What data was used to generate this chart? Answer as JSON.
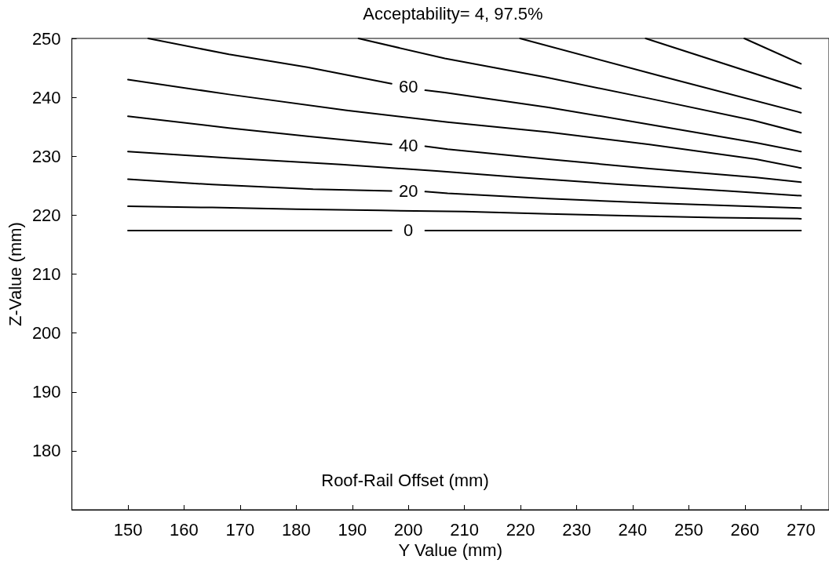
{
  "chart_data": {
    "type": "line",
    "title": "Acceptability= 4, 97.5%",
    "xlabel": "Y Value (mm)",
    "ylabel": "Z-Value (mm)",
    "annotations": [
      "Roof-Rail Offset (mm)"
    ],
    "xlim": [
      140,
      275
    ],
    "xticks": [
      150,
      160,
      170,
      180,
      190,
      200,
      210,
      220,
      230,
      240,
      250,
      260,
      270
    ],
    "ylim": [
      170,
      250
    ],
    "yticks": [
      180,
      190,
      200,
      210,
      220,
      230,
      240,
      250
    ],
    "grid": false,
    "legend": false,
    "marker": "none",
    "line_style": "solid",
    "series": [
      {
        "name": "0",
        "color": "#000000",
        "x": [
          150,
          197,
          200,
          203,
          270
        ],
        "values": [
          217.4,
          217.4,
          null,
          217.4,
          217.4
        ]
      },
      {
        "color": "#000000",
        "x": [
          150,
          165,
          180,
          195,
          210,
          225,
          240,
          255,
          270
        ],
        "values": [
          221.5,
          221.3,
          221.0,
          220.8,
          220.6,
          220.2,
          219.9,
          219.6,
          219.4
        ]
      },
      {
        "name": "20",
        "color": "#000000",
        "x": [
          150,
          165,
          183,
          197,
          200,
          203,
          207,
          225,
          245,
          270
        ],
        "values": [
          226.1,
          225.2,
          224.4,
          224.1,
          null,
          224.0,
          223.7,
          222.8,
          222.0,
          221.2
        ]
      },
      {
        "color": "#000000",
        "x": [
          150,
          168,
          188,
          205,
          220,
          238,
          257,
          270
        ],
        "values": [
          230.8,
          229.7,
          228.6,
          227.5,
          226.4,
          225.2,
          224.1,
          223.3
        ]
      },
      {
        "name": "40",
        "color": "#000000",
        "x": [
          150,
          168,
          182,
          197,
          200,
          203,
          207,
          225,
          243,
          262,
          270
        ],
        "values": [
          236.8,
          234.8,
          233.4,
          232.0,
          null,
          231.7,
          231.2,
          229.5,
          227.9,
          226.4,
          225.6
        ]
      },
      {
        "color": "#000000",
        "x": [
          150,
          168,
          189,
          207,
          225,
          243,
          262,
          270
        ],
        "values": [
          243.0,
          240.5,
          237.8,
          235.8,
          234.1,
          232.0,
          229.5,
          228.0
        ]
      },
      {
        "name": "60",
        "color": "#000000",
        "x": [
          153.6,
          168,
          182,
          197,
          200,
          203,
          206.5,
          225,
          243,
          262,
          270
        ],
        "values": [
          250,
          247.3,
          245.1,
          242.3,
          null,
          241.2,
          240.8,
          238.3,
          235.4,
          232.3,
          230.8
        ]
      },
      {
        "color": "#000000",
        "x": [
          191.1,
          206.5,
          224.5,
          243,
          261.5,
          270
        ],
        "values": [
          250,
          246.6,
          243.4,
          239.8,
          236.1,
          234.0
        ]
      },
      {
        "color": "#000000",
        "x": [
          219.9,
          245,
          270
        ],
        "values": [
          250,
          243.6,
          237.4
        ]
      },
      {
        "color": "#000000",
        "x": [
          242.3,
          270
        ],
        "values": [
          250,
          241.5
        ]
      },
      {
        "color": "#000000",
        "x": [
          259.9,
          270
        ],
        "values": [
          250,
          245.7
        ]
      }
    ]
  }
}
